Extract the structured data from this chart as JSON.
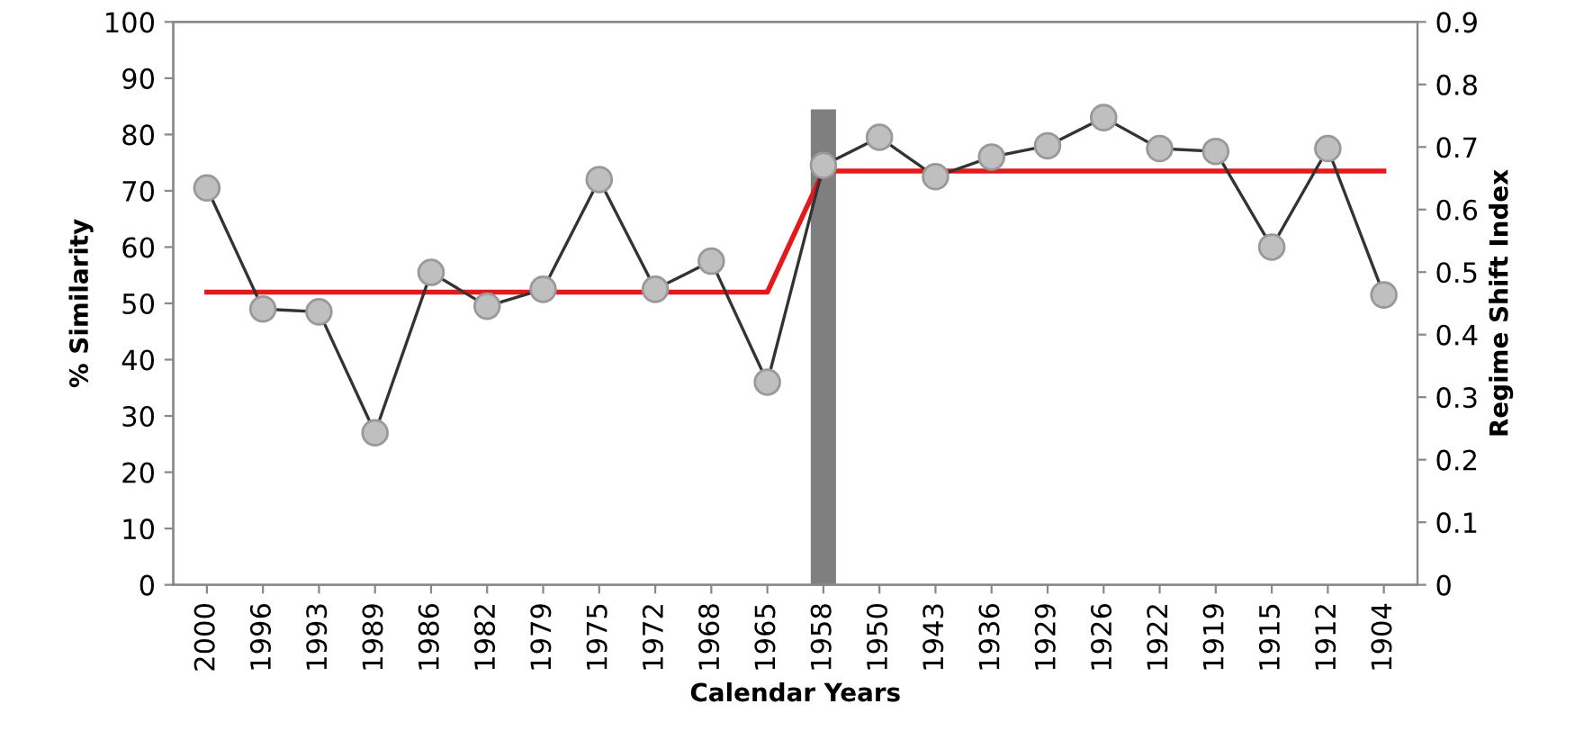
{
  "chart_data": {
    "type": "line",
    "xlabel": "Calendar Years",
    "ylabel": "% Similarity",
    "y2label": "Regime Shift Index",
    "categories": [
      "2000",
      "1996",
      "1993",
      "1989",
      "1986",
      "1982",
      "1979",
      "1975",
      "1972",
      "1968",
      "1965",
      "1958",
      "1950",
      "1943",
      "1936",
      "1929",
      "1926",
      "1922",
      "1919",
      "1915",
      "1912",
      "1904"
    ],
    "series": [
      {
        "type": "bar",
        "axis": "y2",
        "color": "#7f7f7f",
        "values": [
          null,
          null,
          null,
          null,
          null,
          null,
          null,
          null,
          null,
          null,
          null,
          0.76,
          null,
          null,
          null,
          null,
          null,
          null,
          null,
          null,
          null,
          null
        ]
      },
      {
        "color": "#e31a1c",
        "marker": "none",
        "values": [
          52,
          52,
          52,
          52,
          52,
          52,
          52,
          52,
          52,
          52,
          52,
          73.5,
          73.5,
          73.5,
          73.5,
          73.5,
          73.5,
          73.5,
          73.5,
          73.5,
          73.5,
          73.5
        ]
      },
      {
        "color": "#333333",
        "marker": "circle",
        "values": [
          70.5,
          49,
          48.5,
          27,
          55.5,
          49.5,
          52.5,
          72,
          52.5,
          57.5,
          36,
          74.5,
          79.5,
          72.5,
          76,
          78,
          83,
          77.5,
          77,
          60,
          77.5,
          51.5
        ]
      }
    ],
    "ylim": [
      0,
      100
    ],
    "yticks": [
      0,
      10,
      20,
      30,
      40,
      50,
      60,
      70,
      80,
      90,
      100
    ],
    "y2lim": [
      0,
      0.9
    ],
    "y2ticks": [
      0,
      0.1,
      0.2,
      0.3,
      0.4,
      0.5,
      0.6,
      0.7,
      0.8,
      0.9
    ],
    "grid": false,
    "legend": false
  }
}
